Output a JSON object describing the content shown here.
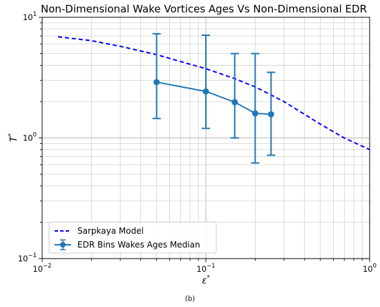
{
  "caption": "(b)",
  "chart_data": {
    "type": "line",
    "title": "Non-Dimensional Wake Vortices Ages Vs Non-Dimensional EDR",
    "xlabel": "ε",
    "xlabel_sup": "*",
    "ylabel": "T",
    "ylabel_sup": "*",
    "xscale": "log",
    "yscale": "log",
    "xlim": [
      0.01,
      1
    ],
    "ylim": [
      0.1,
      10
    ],
    "grid": true,
    "legend_position": "bottom-left",
    "x_ticks": [
      {
        "base": "10",
        "exp": "−2"
      },
      {
        "base": "10",
        "exp": "−1"
      },
      {
        "base": "10",
        "exp": "0"
      }
    ],
    "y_ticks": [
      {
        "base": "10",
        "exp": "−1"
      },
      {
        "base": "10",
        "exp": "0"
      },
      {
        "base": "10",
        "exp": "1"
      }
    ],
    "series": [
      {
        "name": "Sarpkaya Model",
        "style": "dashed",
        "color": "#0000ff",
        "x": [
          0.0125,
          0.02,
          0.03,
          0.05,
          0.07,
          0.1,
          0.15,
          0.2,
          0.3,
          0.5,
          0.7,
          1.0
        ],
        "y": [
          6.9,
          6.4,
          5.75,
          4.9,
          4.3,
          3.75,
          3.1,
          2.65,
          2.0,
          1.3,
          1.0,
          0.8
        ]
      },
      {
        "name": "EDR Bins Wakes Ages Median",
        "style": "solid-marker-errorbar",
        "color": "#1f77b4",
        "x": [
          0.05,
          0.1,
          0.15,
          0.2,
          0.25
        ],
        "y": [
          2.9,
          2.43,
          1.98,
          1.6,
          1.57
        ],
        "y_low": [
          1.45,
          1.2,
          1.0,
          0.62,
          0.72
        ],
        "y_high": [
          7.3,
          7.1,
          5.0,
          5.0,
          3.5
        ]
      }
    ]
  }
}
